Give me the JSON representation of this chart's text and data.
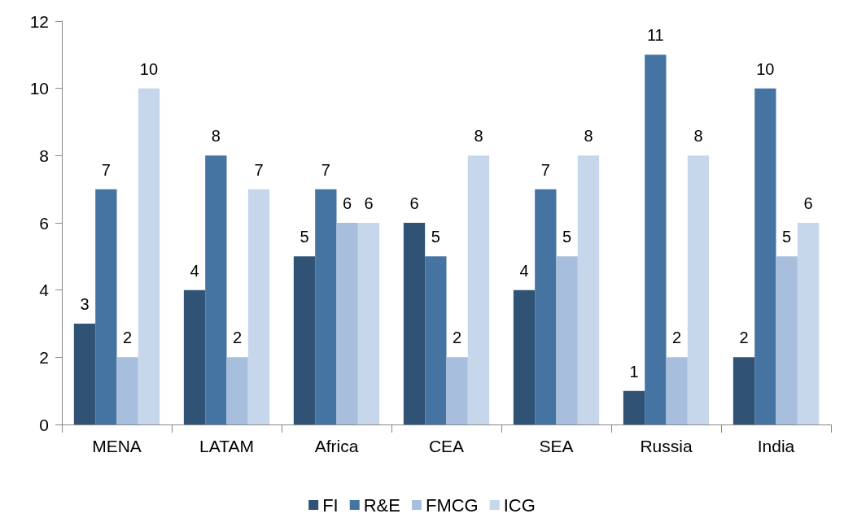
{
  "chart_data": {
    "type": "bar",
    "categories": [
      "MENA",
      "LATAM",
      "Africa",
      "CEA",
      "SEA",
      "Russia",
      "India"
    ],
    "series": [
      {
        "name": "FI",
        "color": "#2f5275",
        "values": [
          3,
          4,
          5,
          6,
          4,
          1,
          2
        ]
      },
      {
        "name": "R&E",
        "color": "#4674a2",
        "values": [
          7,
          8,
          7,
          5,
          7,
          11,
          10
        ]
      },
      {
        "name": "FMCG",
        "color": "#a7bfdd",
        "values": [
          2,
          2,
          6,
          2,
          5,
          2,
          5
        ]
      },
      {
        "name": "ICG",
        "color": "#c6d7eb",
        "values": [
          10,
          7,
          6,
          8,
          8,
          8,
          6
        ]
      }
    ],
    "ylim": [
      0,
      12
    ],
    "yticks": [
      0,
      2,
      4,
      6,
      8,
      10,
      12
    ],
    "grid": false,
    "legend": "bottom",
    "data_labels": true
  }
}
